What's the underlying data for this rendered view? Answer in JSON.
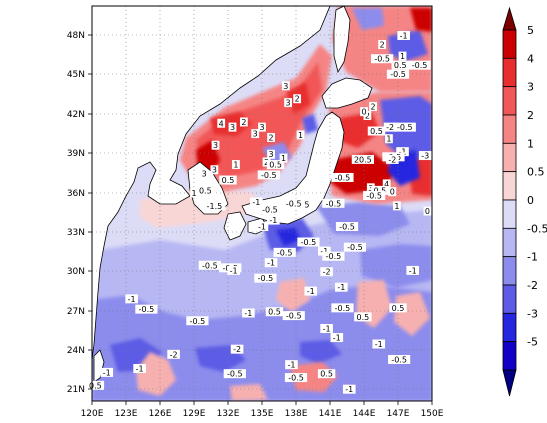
{
  "map": {
    "lon_labels": [
      "120E",
      "123E",
      "126E",
      "129E",
      "132E",
      "135E",
      "138E",
      "141E",
      "144E",
      "147E",
      "150E"
    ],
    "lat_labels": [
      "21N",
      "24N",
      "27N",
      "30N",
      "33N",
      "36N",
      "39N",
      "42N",
      "45N",
      "48N"
    ],
    "lon_range": [
      120,
      150
    ],
    "lat_range": [
      19.8,
      50.4
    ],
    "gridlines": "dotted"
  },
  "colorbar": {
    "labels": [
      "5",
      "4",
      "3",
      "2",
      "1",
      "0.5",
      "0",
      "-0.5",
      "-1",
      "-2",
      "-3",
      "-5"
    ],
    "colors": [
      "#cc0000",
      "#e82e2e",
      "#f25757",
      "#f58585",
      "#f7b0b0",
      "#f9d6d6",
      "#dcdcf7",
      "#b7b7f3",
      "#8c8ced",
      "#5c5ce6",
      "#2626e0",
      "#1000c8"
    ],
    "arrow_top_color": "#7a0000",
    "arrow_bottom_color": "#000080"
  },
  "colors": {
    "land": "#ffffff",
    "coast": "#000000"
  },
  "contour_labels": [
    {
      "text": "0.5",
      "lon": 120.3,
      "lat": 20.9
    },
    {
      "text": "-1",
      "lon": 121.3,
      "lat": 21.9
    },
    {
      "text": "-1",
      "lon": 123.5,
      "lat": 27.6
    },
    {
      "text": "-0.5",
      "lon": 124.8,
      "lat": 26.8
    },
    {
      "text": "-0.5",
      "lon": 129.3,
      "lat": 25.9
    },
    {
      "text": "-2",
      "lon": 127.2,
      "lat": 23.3
    },
    {
      "text": "-1",
      "lon": 124.2,
      "lat": 22.2
    },
    {
      "text": "-0.5",
      "lon": 130.4,
      "lat": 30.2
    },
    {
      "text": "-0.5",
      "lon": 132.2,
      "lat": 30.0
    },
    {
      "text": "-1",
      "lon": 132.5,
      "lat": 29.8
    },
    {
      "text": "-2",
      "lon": 132.8,
      "lat": 23.7
    },
    {
      "text": "-0.5",
      "lon": 132.6,
      "lat": 21.8
    },
    {
      "text": "-1",
      "lon": 133.8,
      "lat": 26.5
    },
    {
      "text": "-0.5",
      "lon": 135.3,
      "lat": 29.2
    },
    {
      "text": "-1",
      "lon": 135.8,
      "lat": 30.4
    },
    {
      "text": "-0.5",
      "lon": 137.0,
      "lat": 31.2
    },
    {
      "text": "0.5",
      "lon": 136.1,
      "lat": 26.6
    },
    {
      "text": "-0.5",
      "lon": 137.8,
      "lat": 26.3
    },
    {
      "text": "-1",
      "lon": 137.6,
      "lat": 22.5
    },
    {
      "text": "-0.5",
      "lon": 138.0,
      "lat": 21.5
    },
    {
      "text": "-1",
      "lon": 140.5,
      "lat": 31.3
    },
    {
      "text": "-2",
      "lon": 140.7,
      "lat": 29.7
    },
    {
      "text": "-1",
      "lon": 139.3,
      "lat": 28.2
    },
    {
      "text": "-0.5",
      "lon": 141.3,
      "lat": 30.9
    },
    {
      "text": "-1",
      "lon": 142.0,
      "lat": 28.5
    },
    {
      "text": "-0.5",
      "lon": 142.1,
      "lat": 26.9
    },
    {
      "text": "-1",
      "lon": 140.7,
      "lat": 25.3
    },
    {
      "text": "-1",
      "lon": 141.6,
      "lat": 24.6
    },
    {
      "text": "-0.5",
      "lon": 143.2,
      "lat": 31.6
    },
    {
      "text": "-0.5",
      "lon": 142.5,
      "lat": 33.2
    },
    {
      "text": "0.5",
      "lon": 143.9,
      "lat": 26.2
    },
    {
      "text": "-1",
      "lon": 145.3,
      "lat": 24.1
    },
    {
      "text": "0.5",
      "lon": 147.0,
      "lat": 26.9
    },
    {
      "text": "-1",
      "lon": 148.3,
      "lat": 29.8
    },
    {
      "text": "-0.5",
      "lon": 147.1,
      "lat": 22.9
    },
    {
      "text": "-1",
      "lon": 142.7,
      "lat": 20.6
    },
    {
      "text": "0.5",
      "lon": 140.7,
      "lat": 21.8
    },
    {
      "text": "-0.5",
      "lon": 139.1,
      "lat": 32.0
    },
    {
      "text": "-0.5",
      "lon": 141.3,
      "lat": 35.0
    },
    {
      "text": "-0.5",
      "lon": 138.5,
      "lat": 34.9
    },
    {
      "text": "-0.5",
      "lon": 137.8,
      "lat": 35.0
    },
    {
      "text": "-0.5",
      "lon": 135.7,
      "lat": 34.5
    },
    {
      "text": "-1",
      "lon": 135.0,
      "lat": 33.2
    },
    {
      "text": "-1",
      "lon": 134.5,
      "lat": 35.1
    },
    {
      "text": "-1",
      "lon": 136.0,
      "lat": 33.7
    },
    {
      "text": "0.5",
      "lon": 132.0,
      "lat": 36.8
    },
    {
      "text": "0.5",
      "lon": 130.0,
      "lat": 36.0
    },
    {
      "text": "1",
      "lon": 129.0,
      "lat": 35.8
    },
    {
      "text": "-1.5",
      "lon": 130.8,
      "lat": 34.8
    },
    {
      "text": "1",
      "lon": 132.7,
      "lat": 38.0
    },
    {
      "text": "-0.5",
      "lon": 135.6,
      "lat": 37.2
    },
    {
      "text": "2",
      "lon": 135.4,
      "lat": 38.2
    },
    {
      "text": "3",
      "lon": 135.8,
      "lat": 38.8
    },
    {
      "text": "0.5",
      "lon": 136.2,
      "lat": 38.0
    },
    {
      "text": "3",
      "lon": 129.9,
      "lat": 37.3
    },
    {
      "text": "3",
      "lon": 130.8,
      "lat": 37.6
    },
    {
      "text": "3",
      "lon": 130.9,
      "lat": 39.5
    },
    {
      "text": "4",
      "lon": 131.4,
      "lat": 41.2
    },
    {
      "text": "3",
      "lon": 132.4,
      "lat": 40.9
    },
    {
      "text": "2",
      "lon": 133.4,
      "lat": 41.3
    },
    {
      "text": "3",
      "lon": 135.0,
      "lat": 40.9
    },
    {
      "text": "2",
      "lon": 135.8,
      "lat": 40.1
    },
    {
      "text": "3",
      "lon": 134.4,
      "lat": 40.4
    },
    {
      "text": "3",
      "lon": 137.1,
      "lat": 44.1
    },
    {
      "text": "2",
      "lon": 138.1,
      "lat": 43.1
    },
    {
      "text": "3",
      "lon": 137.3,
      "lat": 42.8
    },
    {
      "text": "1",
      "lon": 138.4,
      "lat": 40.3
    },
    {
      "text": "1",
      "lon": 136.9,
      "lat": 38.5
    },
    {
      "text": "2",
      "lon": 144.8,
      "lat": 42.5
    },
    {
      "text": "2",
      "lon": 144.3,
      "lat": 41.8
    },
    {
      "text": "0.5",
      "lon": 145.1,
      "lat": 40.6
    },
    {
      "text": "-2",
      "lon": 146.3,
      "lat": 40.9
    },
    {
      "text": "-0.5",
      "lon": 147.6,
      "lat": 40.9
    },
    {
      "text": "1",
      "lon": 146.2,
      "lat": 40.0
    },
    {
      "text": "-1",
      "lon": 147.4,
      "lat": 39.0
    },
    {
      "text": "-0.5",
      "lon": 146.6,
      "lat": 38.6
    },
    {
      "text": "20.5",
      "lon": 143.9,
      "lat": 38.4
    },
    {
      "text": "-2",
      "lon": 146.5,
      "lat": 38.4
    },
    {
      "text": "-3",
      "lon": 149.4,
      "lat": 38.7
    },
    {
      "text": "4",
      "lon": 146.0,
      "lat": 36.5
    },
    {
      "text": "3",
      "lon": 144.6,
      "lat": 36.2
    },
    {
      "text": "0.5",
      "lon": 145.4,
      "lat": 36.0
    },
    {
      "text": "-0.5",
      "lon": 142.1,
      "lat": 37.0
    },
    {
      "text": "0",
      "lon": 146.5,
      "lat": 35.9
    },
    {
      "text": "-0.5",
      "lon": 144.9,
      "lat": 35.6
    },
    {
      "text": "1",
      "lon": 146.9,
      "lat": 34.8
    },
    {
      "text": "0",
      "lon": 149.6,
      "lat": 34.4
    },
    {
      "text": "0",
      "lon": 144.0,
      "lat": 42.1
    },
    {
      "text": "-0.5",
      "lon": 145.6,
      "lat": 46.2
    },
    {
      "text": "0.5",
      "lon": 147.2,
      "lat": 45.7
    },
    {
      "text": "1",
      "lon": 147.4,
      "lat": 46.4
    },
    {
      "text": "-0.5",
      "lon": 147.0,
      "lat": 45.0
    },
    {
      "text": "-0.5",
      "lon": 148.9,
      "lat": 45.7
    },
    {
      "text": "-1",
      "lon": 147.5,
      "lat": 48.0
    },
    {
      "text": "2",
      "lon": 145.6,
      "lat": 47.3
    }
  ]
}
